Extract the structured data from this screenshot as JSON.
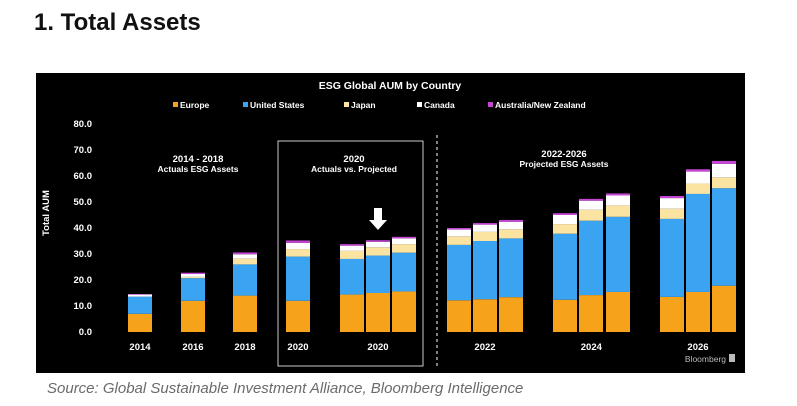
{
  "page": {
    "heading": "1. Total Assets",
    "source": "Source: Global Sustainable Investment Alliance, Bloomberg Intelligence"
  },
  "chart_data": {
    "type": "bar",
    "stacked": true,
    "title": "ESG Global AUM by Country",
    "ylabel": "Total AUM",
    "xlabel": "",
    "ylim": [
      0,
      80
    ],
    "yticks": [
      "0.0",
      "10.0",
      "20.0",
      "30.0",
      "40.0",
      "50.0",
      "60.0",
      "70.0",
      "80.0"
    ],
    "grid": false,
    "legend": "top",
    "colors": {
      "background": "#000000",
      "Europe": "#f7a21b",
      "United States": "#3aa4f2",
      "Japan": "#fbe4a2",
      "Canada": "#ffffff",
      "Australia/New Zealand": "#c645d6"
    },
    "legend_items": [
      "Europe",
      "United States",
      "Japan",
      "Canada",
      "Australia/New Zealand"
    ],
    "groups": [
      {
        "label": "2014",
        "bars": [
          0
        ]
      },
      {
        "label": "2016",
        "bars": [
          1
        ]
      },
      {
        "label": "2018",
        "bars": [
          2
        ]
      },
      {
        "label": "2020",
        "bars": [
          3
        ]
      },
      {
        "label": "2020",
        "bars": [
          4,
          5,
          6
        ]
      },
      {
        "label": "2022",
        "bars": [
          7,
          8,
          9
        ]
      },
      {
        "label": "2024",
        "bars": [
          10,
          11,
          12
        ]
      },
      {
        "label": "2026",
        "bars": [
          13,
          14,
          15
        ]
      }
    ],
    "bars": [
      {
        "Europe": 7.0,
        "United States": 6.6,
        "Japan": 0.0,
        "Canada": 0.8,
        "Australia/New Zealand": 0.2
      },
      {
        "Europe": 12.0,
        "United States": 8.7,
        "Japan": 0.5,
        "Canada": 1.1,
        "Australia/New Zealand": 0.5
      },
      {
        "Europe": 14.0,
        "United States": 12.0,
        "Japan": 2.2,
        "Canada": 1.7,
        "Australia/New Zealand": 0.7
      },
      {
        "Europe": 12.0,
        "United States": 17.0,
        "Japan": 2.9,
        "Canada": 2.4,
        "Australia/New Zealand": 0.9
      },
      {
        "Europe": 14.4,
        "United States": 13.7,
        "Japan": 3.1,
        "Canada": 2.0,
        "Australia/New Zealand": 0.6
      },
      {
        "Europe": 15.0,
        "United States": 14.4,
        "Japan": 3.2,
        "Canada": 2.1,
        "Australia/New Zealand": 0.6
      },
      {
        "Europe": 15.6,
        "United States": 14.9,
        "Japan": 3.3,
        "Canada": 2.2,
        "Australia/New Zealand": 0.6
      },
      {
        "Europe": 12.2,
        "United States": 21.3,
        "Japan": 3.3,
        "Canada": 2.6,
        "Australia/New Zealand": 0.6
      },
      {
        "Europe": 12.6,
        "United States": 22.4,
        "Japan": 3.5,
        "Canada": 2.8,
        "Australia/New Zealand": 0.6
      },
      {
        "Europe": 13.4,
        "United States": 22.6,
        "Japan": 3.5,
        "Canada": 2.9,
        "Australia/New Zealand": 0.7
      },
      {
        "Europe": 12.4,
        "United States": 25.4,
        "Japan": 3.7,
        "Canada": 3.5,
        "Australia/New Zealand": 0.7
      },
      {
        "Europe": 14.2,
        "United States": 28.6,
        "Japan": 4.2,
        "Canada": 3.5,
        "Australia/New Zealand": 0.7
      },
      {
        "Europe": 15.4,
        "United States": 28.9,
        "Japan": 4.4,
        "Canada": 3.8,
        "Australia/New Zealand": 0.8
      },
      {
        "Europe": 13.5,
        "United States": 30.0,
        "Japan": 3.9,
        "Canada": 4.1,
        "Australia/New Zealand": 0.8
      },
      {
        "Europe": 15.4,
        "United States": 37.7,
        "Japan": 4.0,
        "Canada": 4.6,
        "Australia/New Zealand": 0.9
      },
      {
        "Europe": 17.8,
        "United States": 37.5,
        "Japan": 4.2,
        "Canada": 5.2,
        "Australia/New Zealand": 1.1
      }
    ],
    "sections": [
      {
        "title": "2014 - 2018",
        "subtitle": "Actuals ESG Assets"
      },
      {
        "title": "2020",
        "subtitle": "Actuals vs. Projected"
      },
      {
        "title": "2022-2026",
        "subtitle": "Projected ESG Assets"
      }
    ],
    "watermark": "Bloomberg"
  }
}
